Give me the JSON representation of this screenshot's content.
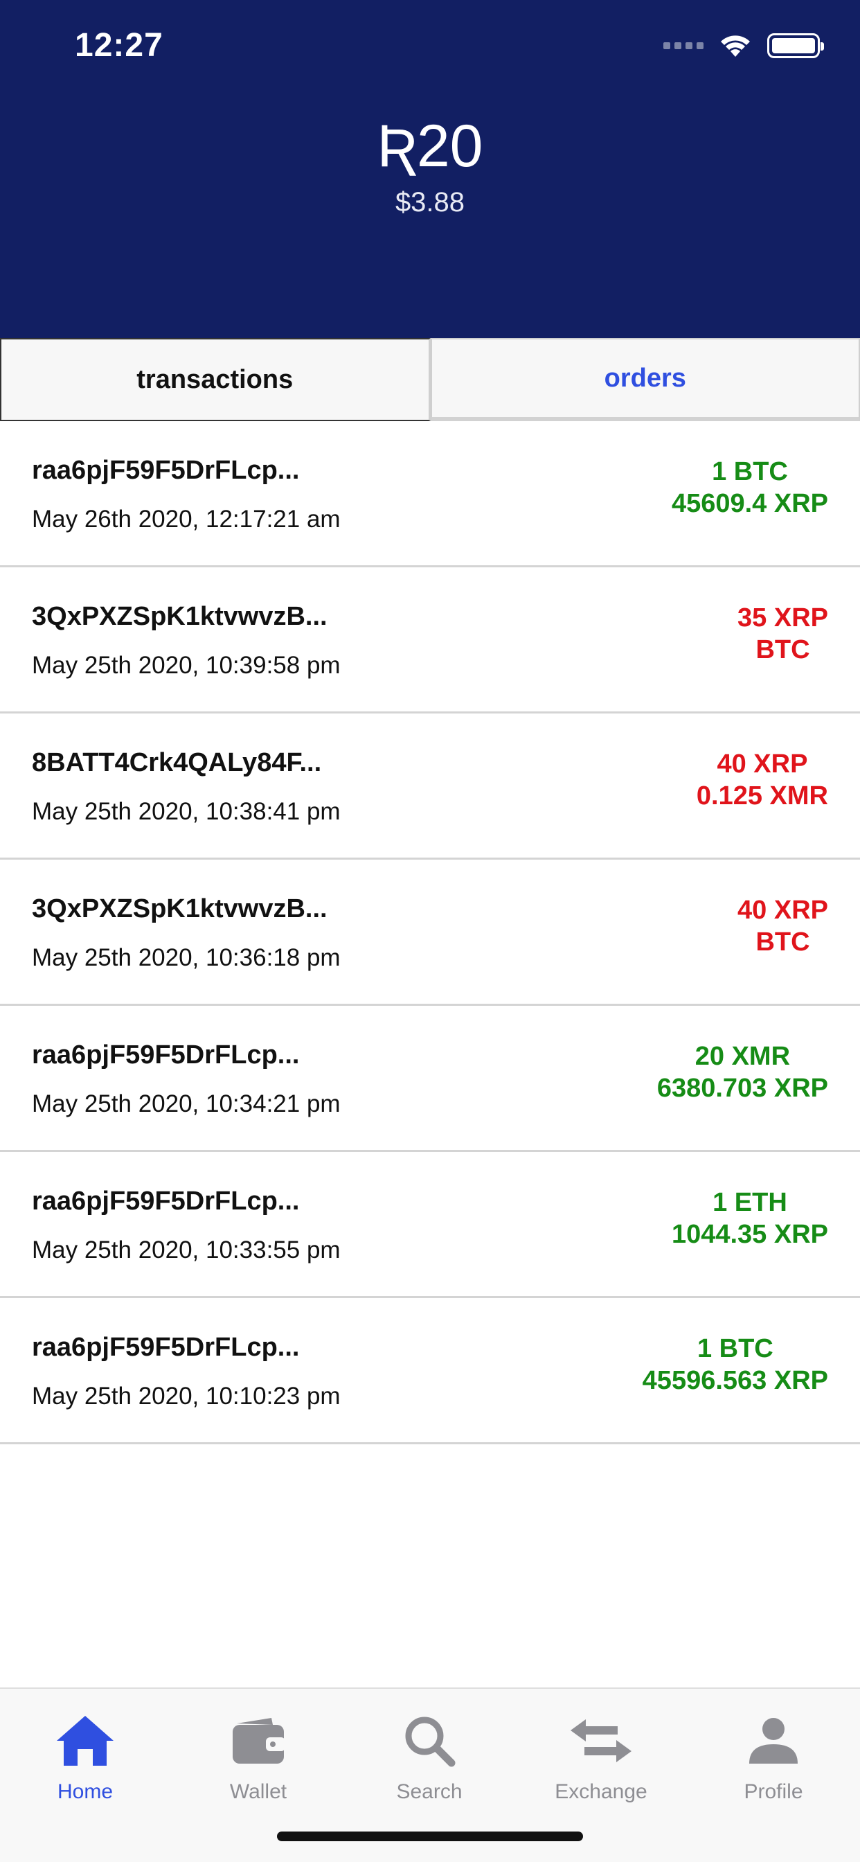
{
  "status_bar": {
    "time": "12:27"
  },
  "header": {
    "balance": "Ʀ20",
    "balance_usd": "$3.88"
  },
  "tabs": {
    "transactions": "transactions",
    "orders": "orders"
  },
  "transactions": [
    {
      "id": "raa6pjF59F5DrFLcp...",
      "date": "May 26th 2020, 12:17:21 am",
      "amount1": "1 BTC",
      "amount2": "45609.4 XRP",
      "direction": "in"
    },
    {
      "id": "3QxPXZSpK1ktvwvzB...",
      "date": "May 25th 2020, 10:39:58 pm",
      "amount1": "35 XRP",
      "amount2": "BTC",
      "direction": "out"
    },
    {
      "id": "8BATT4Crk4QALy84F...",
      "date": "May 25th 2020, 10:38:41 pm",
      "amount1": "40 XRP",
      "amount2": "0.125 XMR",
      "direction": "out"
    },
    {
      "id": "3QxPXZSpK1ktvwvzB...",
      "date": "May 25th 2020, 10:36:18 pm",
      "amount1": "40 XRP",
      "amount2": "BTC",
      "direction": "out"
    },
    {
      "id": "raa6pjF59F5DrFLcp...",
      "date": "May 25th 2020, 10:34:21 pm",
      "amount1": "20 XMR",
      "amount2": "6380.703 XRP",
      "direction": "in"
    },
    {
      "id": "raa6pjF59F5DrFLcp...",
      "date": "May 25th 2020, 10:33:55 pm",
      "amount1": "1 ETH",
      "amount2": "1044.35 XRP",
      "direction": "in"
    },
    {
      "id": "raa6pjF59F5DrFLcp...",
      "date": "May 25th 2020, 10:10:23 pm",
      "amount1": "1 BTC",
      "amount2": "45596.563 XRP",
      "direction": "in"
    }
  ],
  "nav": {
    "home": "Home",
    "wallet": "Wallet",
    "search": "Search",
    "exchange": "Exchange",
    "profile": "Profile"
  },
  "colors": {
    "header_bg": "#121f63",
    "accent": "#2f4fe0",
    "incoming": "#168c16",
    "outgoing": "#e0141b",
    "inactive_nav": "#8e8e93"
  }
}
